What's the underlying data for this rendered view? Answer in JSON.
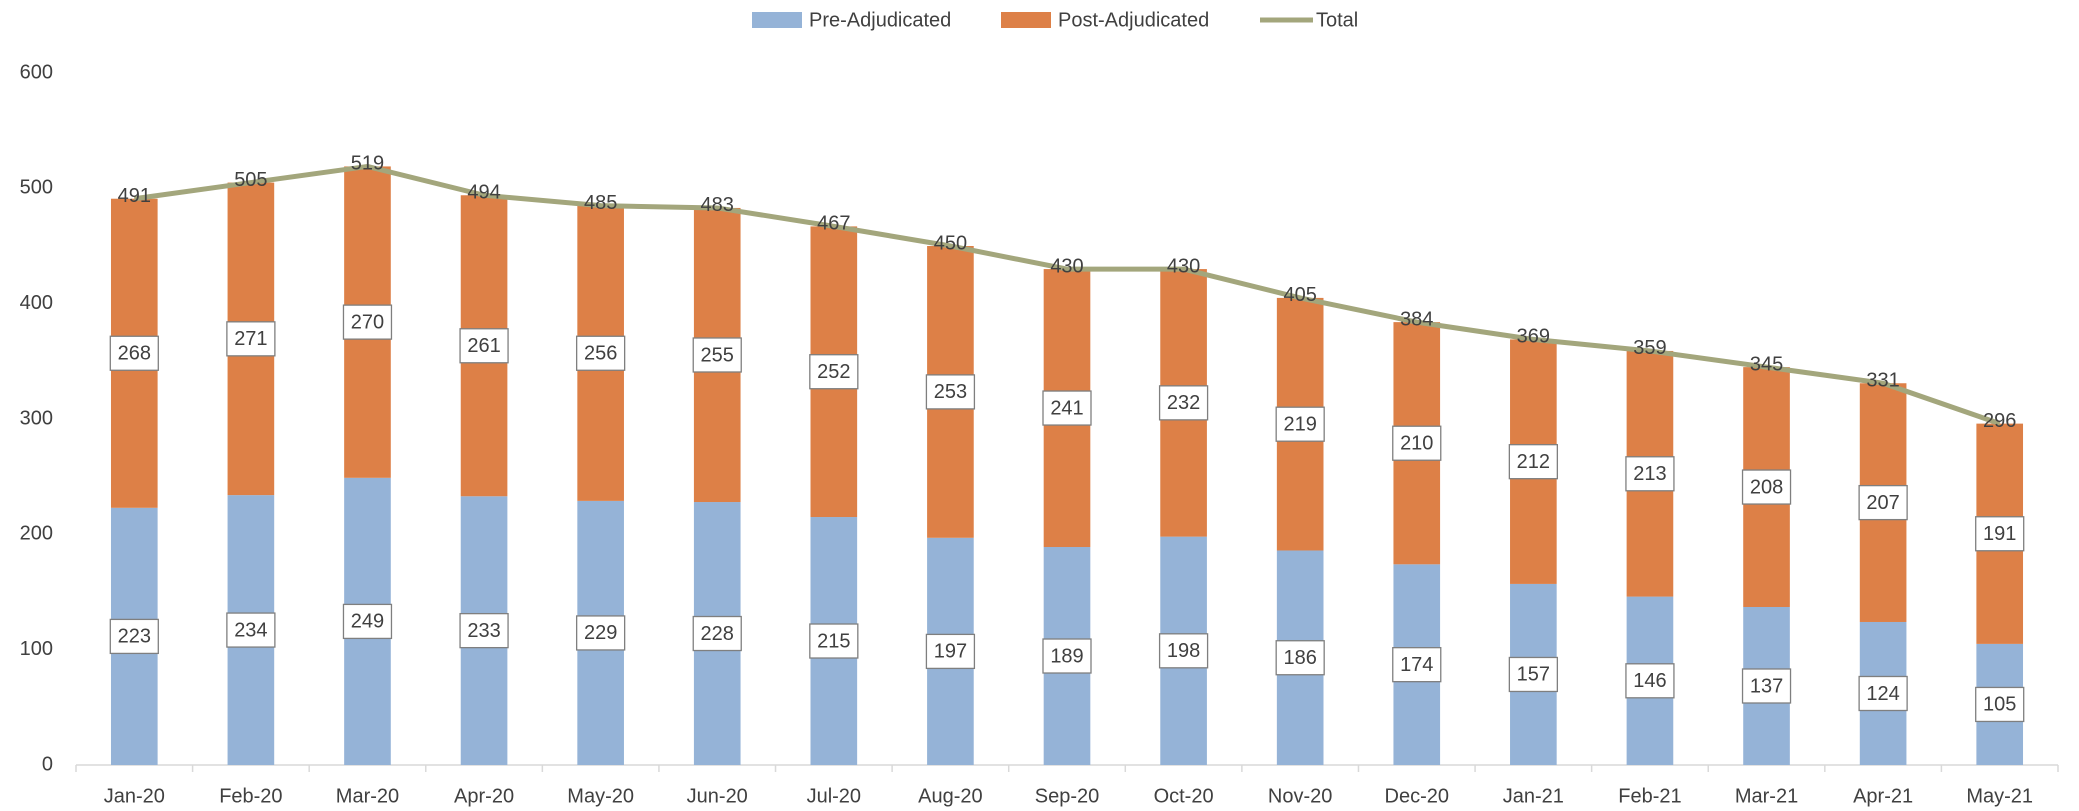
{
  "chart_data": {
    "type": "bar",
    "stacked": true,
    "categories": [
      "Jan-20",
      "Feb-20",
      "Mar-20",
      "Apr-20",
      "May-20",
      "Jun-20",
      "Jul-20",
      "Aug-20",
      "Sep-20",
      "Oct-20",
      "Nov-20",
      "Dec-20",
      "Jan-21",
      "Feb-21",
      "Mar-21",
      "Apr-21",
      "May-21"
    ],
    "series": [
      {
        "name": "Pre-Adjudicated",
        "color": "#95b3d7",
        "values": [
          223,
          234,
          249,
          233,
          229,
          228,
          215,
          197,
          189,
          198,
          186,
          174,
          157,
          146,
          137,
          124,
          105
        ]
      },
      {
        "name": "Post-Adjudicated",
        "color": "#dd8047",
        "values": [
          268,
          271,
          270,
          261,
          256,
          255,
          252,
          253,
          241,
          232,
          219,
          210,
          212,
          213,
          208,
          207,
          191
        ]
      },
      {
        "name": "Total",
        "type": "line",
        "color": "#a3a67c",
        "values": [
          491,
          505,
          519,
          494,
          485,
          483,
          467,
          450,
          430,
          430,
          405,
          384,
          369,
          359,
          345,
          331,
          296
        ]
      }
    ],
    "ylim": [
      0,
      600
    ],
    "yticks": [
      0,
      100,
      200,
      300,
      400,
      500,
      600
    ],
    "grid": false,
    "legend": "top"
  }
}
